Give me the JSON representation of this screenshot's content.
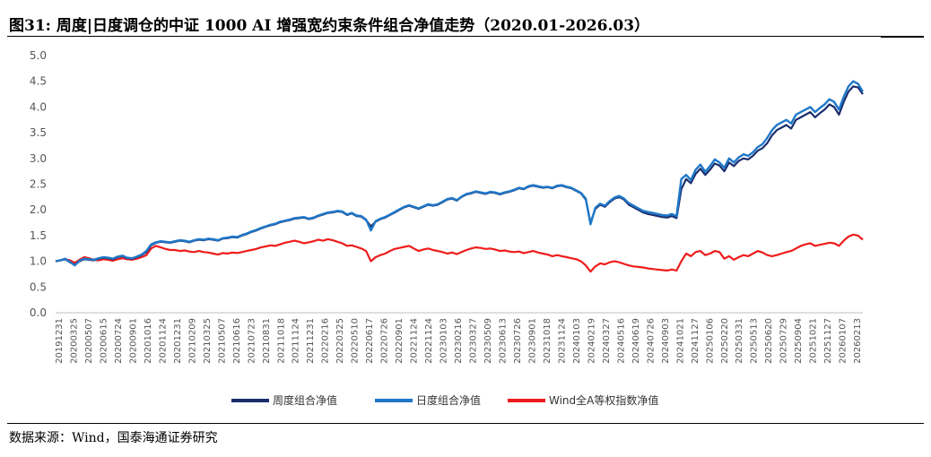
{
  "figure": {
    "title": "图31: 周度|日度调仓的中证 1000 AI 增强宽约束条件组合净值走势（2020.01-2026.03）",
    "source": "数据来源：Wind，国泰海通证券研究"
  },
  "chart_data": {
    "type": "line",
    "title": "",
    "xlabel": "",
    "ylabel": "",
    "ylim": [
      0,
      5.0
    ],
    "yticks": [
      "0.0",
      "0.5",
      "1.0",
      "1.5",
      "2.0",
      "2.5",
      "3.0",
      "3.5",
      "4.0",
      "4.5",
      "5.0"
    ],
    "grid": false,
    "legend": "bottom",
    "xtick_labels": [
      "20191231",
      "20200325",
      "20200507",
      "20200615",
      "20200724",
      "20200901",
      "20201016",
      "20201124",
      "20201231",
      "20210209",
      "20210325",
      "20210507",
      "20210616",
      "20210723",
      "20210831",
      "20211018",
      "20211124",
      "20211231",
      "20220216",
      "20220325",
      "20220510",
      "20220617",
      "20220726",
      "20220901",
      "20221124",
      "20221124",
      "20230103",
      "20230216",
      "20230327",
      "20230509",
      "20230613",
      "20230726",
      "20230901",
      "20231018",
      "20231124",
      "20240103",
      "20240219",
      "20240327",
      "20240516",
      "20240619",
      "20240726",
      "20240903",
      "20241021",
      "20241127",
      "20250106",
      "20250220",
      "20250331",
      "20250513",
      "20250620",
      "20250729",
      "20250904",
      "20251021",
      "20251127",
      "20260107",
      "20260213"
    ],
    "series": [
      {
        "name": "周度组合净值",
        "color": "#1a2e6e",
        "values": [
          1.0,
          1.02,
          1.04,
          0.98,
          0.93,
          1.0,
          1.04,
          1.03,
          1.02,
          1.05,
          1.07,
          1.06,
          1.04,
          1.08,
          1.1,
          1.06,
          1.05,
          1.08,
          1.12,
          1.18,
          1.31,
          1.36,
          1.38,
          1.37,
          1.36,
          1.38,
          1.4,
          1.39,
          1.37,
          1.4,
          1.42,
          1.41,
          1.43,
          1.42,
          1.4,
          1.44,
          1.45,
          1.47,
          1.46,
          1.5,
          1.53,
          1.57,
          1.6,
          1.64,
          1.67,
          1.7,
          1.72,
          1.76,
          1.78,
          1.8,
          1.83,
          1.84,
          1.85,
          1.82,
          1.84,
          1.88,
          1.91,
          1.94,
          1.95,
          1.97,
          1.96,
          1.9,
          1.93,
          1.88,
          1.87,
          1.8,
          1.68,
          1.77,
          1.82,
          1.85,
          1.9,
          1.95,
          2.0,
          2.05,
          2.08,
          2.05,
          2.02,
          2.06,
          2.1,
          2.08,
          2.1,
          2.15,
          2.2,
          2.22,
          2.18,
          2.25,
          2.3,
          2.32,
          2.35,
          2.33,
          2.31,
          2.34,
          2.33,
          2.3,
          2.33,
          2.35,
          2.38,
          2.42,
          2.4,
          2.45,
          2.47,
          2.45,
          2.43,
          2.44,
          2.42,
          2.46,
          2.47,
          2.44,
          2.42,
          2.37,
          2.32,
          2.2,
          1.75,
          2.02,
          2.1,
          2.06,
          2.15,
          2.22,
          2.25,
          2.2,
          2.1,
          2.05,
          2.0,
          1.95,
          1.92,
          1.9,
          1.88,
          1.86,
          1.85,
          1.88,
          1.84,
          2.4,
          2.6,
          2.52,
          2.7,
          2.8,
          2.68,
          2.78,
          2.9,
          2.86,
          2.75,
          2.92,
          2.85,
          2.95,
          3.0,
          2.98,
          3.05,
          3.15,
          3.2,
          3.3,
          3.45,
          3.55,
          3.6,
          3.65,
          3.58,
          3.75,
          3.8,
          3.85,
          3.9,
          3.8,
          3.88,
          3.95,
          4.05,
          4.0,
          3.85,
          4.1,
          4.3,
          4.4,
          4.38,
          4.25
        ]
      },
      {
        "name": "日度组合净值",
        "color": "#1f78c8",
        "values": [
          1.0,
          1.02,
          1.05,
          0.99,
          0.92,
          1.01,
          1.05,
          1.04,
          1.03,
          1.06,
          1.08,
          1.07,
          1.05,
          1.09,
          1.11,
          1.07,
          1.06,
          1.09,
          1.13,
          1.2,
          1.33,
          1.37,
          1.39,
          1.38,
          1.37,
          1.39,
          1.41,
          1.4,
          1.38,
          1.41,
          1.43,
          1.42,
          1.44,
          1.43,
          1.41,
          1.45,
          1.46,
          1.48,
          1.47,
          1.51,
          1.54,
          1.58,
          1.61,
          1.65,
          1.68,
          1.71,
          1.73,
          1.77,
          1.79,
          1.81,
          1.84,
          1.85,
          1.86,
          1.83,
          1.85,
          1.89,
          1.92,
          1.95,
          1.96,
          1.98,
          1.97,
          1.91,
          1.94,
          1.89,
          1.88,
          1.81,
          1.6,
          1.78,
          1.83,
          1.86,
          1.91,
          1.96,
          2.01,
          2.06,
          2.09,
          2.06,
          2.03,
          2.07,
          2.11,
          2.09,
          2.11,
          2.16,
          2.21,
          2.23,
          2.19,
          2.26,
          2.31,
          2.33,
          2.36,
          2.34,
          2.32,
          2.35,
          2.34,
          2.31,
          2.34,
          2.36,
          2.39,
          2.43,
          2.41,
          2.46,
          2.48,
          2.46,
          2.44,
          2.45,
          2.43,
          2.47,
          2.48,
          2.45,
          2.43,
          2.38,
          2.33,
          2.22,
          1.72,
          2.04,
          2.12,
          2.08,
          2.17,
          2.24,
          2.27,
          2.22,
          2.13,
          2.08,
          2.03,
          1.98,
          1.96,
          1.94,
          1.92,
          1.9,
          1.89,
          1.92,
          1.88,
          2.6,
          2.68,
          2.58,
          2.78,
          2.88,
          2.74,
          2.85,
          2.98,
          2.92,
          2.82,
          3.0,
          2.92,
          3.02,
          3.08,
          3.05,
          3.12,
          3.22,
          3.28,
          3.4,
          3.55,
          3.65,
          3.7,
          3.75,
          3.68,
          3.85,
          3.9,
          3.95,
          4.0,
          3.9,
          3.98,
          4.05,
          4.15,
          4.1,
          3.95,
          4.2,
          4.4,
          4.5,
          4.45,
          4.3
        ]
      },
      {
        "name": "Wind全A等权指数净值",
        "color": "#ee1c1c",
        "values": [
          1.0,
          1.02,
          1.04,
          1.02,
          0.97,
          1.03,
          1.08,
          1.06,
          1.03,
          1.02,
          1.04,
          1.03,
          1.01,
          1.04,
          1.06,
          1.04,
          1.03,
          1.05,
          1.08,
          1.12,
          1.25,
          1.3,
          1.27,
          1.24,
          1.22,
          1.22,
          1.2,
          1.21,
          1.19,
          1.18,
          1.2,
          1.18,
          1.17,
          1.15,
          1.13,
          1.16,
          1.15,
          1.17,
          1.16,
          1.18,
          1.2,
          1.22,
          1.24,
          1.27,
          1.29,
          1.31,
          1.3,
          1.33,
          1.36,
          1.38,
          1.4,
          1.38,
          1.35,
          1.37,
          1.39,
          1.42,
          1.4,
          1.43,
          1.41,
          1.38,
          1.35,
          1.3,
          1.31,
          1.28,
          1.25,
          1.2,
          1.0,
          1.08,
          1.12,
          1.15,
          1.2,
          1.24,
          1.26,
          1.28,
          1.3,
          1.25,
          1.2,
          1.23,
          1.25,
          1.22,
          1.2,
          1.18,
          1.15,
          1.17,
          1.14,
          1.18,
          1.22,
          1.25,
          1.27,
          1.26,
          1.24,
          1.25,
          1.23,
          1.2,
          1.21,
          1.19,
          1.18,
          1.19,
          1.16,
          1.18,
          1.2,
          1.17,
          1.15,
          1.13,
          1.1,
          1.12,
          1.1,
          1.08,
          1.06,
          1.04,
          1.0,
          0.92,
          0.8,
          0.9,
          0.96,
          0.94,
          0.98,
          1.0,
          0.98,
          0.95,
          0.92,
          0.9,
          0.89,
          0.88,
          0.86,
          0.85,
          0.84,
          0.83,
          0.82,
          0.84,
          0.82,
          1.0,
          1.15,
          1.1,
          1.18,
          1.2,
          1.12,
          1.15,
          1.2,
          1.18,
          1.05,
          1.1,
          1.03,
          1.08,
          1.12,
          1.1,
          1.15,
          1.2,
          1.17,
          1.12,
          1.1,
          1.12,
          1.15,
          1.18,
          1.2,
          1.25,
          1.3,
          1.33,
          1.35,
          1.3,
          1.32,
          1.34,
          1.36,
          1.35,
          1.3,
          1.4,
          1.48,
          1.52,
          1.5,
          1.42
        ]
      }
    ]
  }
}
